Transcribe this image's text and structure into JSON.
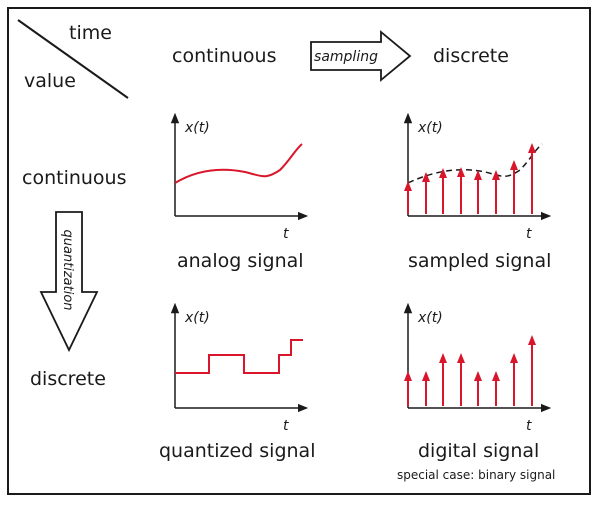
{
  "corner": {
    "time_label": "time",
    "value_label": "value"
  },
  "columns": {
    "continuous": "continuous",
    "discrete": "discrete"
  },
  "rows": {
    "continuous": "continuous",
    "discrete": "discrete"
  },
  "arrows": {
    "sampling": "sampling",
    "quantization": "quantization"
  },
  "panels": {
    "analog": {
      "y_label": "x(t)",
      "x_label": "t",
      "caption": "analog signal"
    },
    "sampled": {
      "y_label": "x(t)",
      "x_label": "t",
      "caption": "sampled signal"
    },
    "quantized": {
      "y_label": "x(t)",
      "x_label": "t",
      "caption": "quantized signal"
    },
    "digital": {
      "y_label": "x(t)",
      "x_label": "t",
      "caption": "digital signal",
      "note": "special case: binary signal"
    }
  },
  "colors": {
    "signal": "#d9162b",
    "ink": "#1a1a1a"
  }
}
